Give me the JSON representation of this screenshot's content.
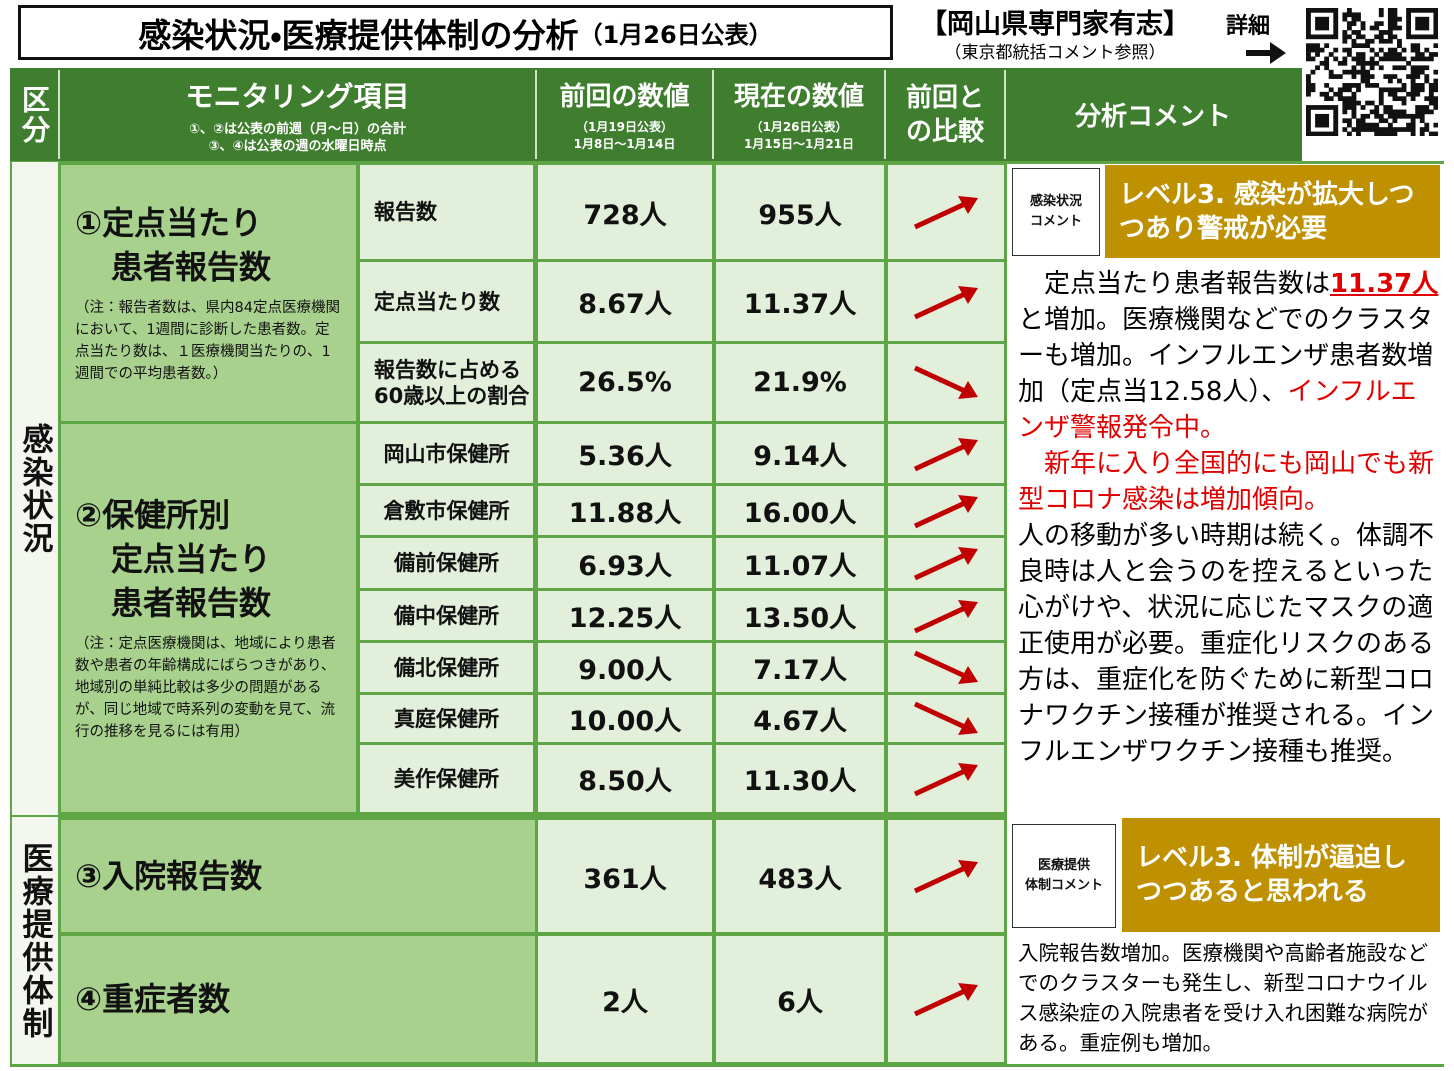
{
  "header": {
    "title": "感染状況・医療提供体制の分析",
    "date": "（1月26日公表）",
    "source": "【岡山県専門家有志】",
    "source_note": "（東京都統括コメント参照）",
    "detail_link": "詳細"
  },
  "table": {
    "columns": {
      "category": "区分",
      "item": "モニタリング項目",
      "item_notes": [
        "①、②は公表の前週（月～日）の合計",
        "③、④は公表の週の水曜日時点"
      ],
      "previous": "前回の数値",
      "previous_date": "（1月19日公表）",
      "previous_period": "1月8日～1月14日",
      "current": "現在の数値",
      "current_date": "（1月26日公表）",
      "current_period": "1月15日～1月21日",
      "comparison": "前回との比較",
      "comment": "分析コメント"
    },
    "sections": [
      {
        "label": "感染状況",
        "groups": [
          {
            "label_lines": [
              "①定点当たり",
              "患者報告数"
            ],
            "note": "（注：報告者数は、県内84定点医療機関において、1週間に診断した患者数。定点当たり数は、１医療機関当たりの、1週間での平均患者数。）",
            "rows": [
              {
                "item": [
                  "報告数"
                ],
                "previous": "728人",
                "current": "955人",
                "trend": "up"
              },
              {
                "item": [
                  "定点当たり数"
                ],
                "previous": "8.67人",
                "current": "11.37人",
                "trend": "up"
              },
              {
                "item": [
                  "報告数に占める",
                  "60歳以上の割合"
                ],
                "previous": "26.5%",
                "current": "21.9%",
                "trend": "down"
              }
            ]
          },
          {
            "label_lines": [
              "②保健所別",
              "定点当たり",
              "患者報告数"
            ],
            "note": "（注：定点医療機関は、地域により患者数や患者の年齢構成にばらつきがあり、地域別の単純比較は多少の問題があるが、同じ地域で時系列の変動を見て、流行の推移を見るには有用）",
            "rows": [
              {
                "item": [
                  "岡山市保健所"
                ],
                "previous": "5.36人",
                "current": "9.14人",
                "trend": "up"
              },
              {
                "item": [
                  "倉敷市保健所"
                ],
                "previous": "11.88人",
                "current": "16.00人",
                "trend": "up"
              },
              {
                "item": [
                  "備前保健所"
                ],
                "previous": "6.93人",
                "current": "11.07人",
                "trend": "up"
              },
              {
                "item": [
                  "備中保健所"
                ],
                "previous": "12.25人",
                "current": "13.50人",
                "trend": "up"
              },
              {
                "item": [
                  "備北保健所"
                ],
                "previous": "9.00人",
                "current": "7.17人",
                "trend": "down"
              },
              {
                "item": [
                  "真庭保健所"
                ],
                "previous": "10.00人",
                "current": "4.67人",
                "trend": "down"
              },
              {
                "item": [
                  "美作保健所"
                ],
                "previous": "8.50人",
                "current": "11.30人",
                "trend": "up"
              }
            ]
          }
        ],
        "comment": {
          "label_lines": [
            "感染状況",
            "コメント"
          ],
          "level": "レベル3. 感染が拡大しつつあり警戒が必要",
          "paragraphs": [
            [
              {
                "text": "定点当たり患者報告数は",
                "color": "#000000"
              },
              {
                "text": "11.37人",
                "color": "#e00000",
                "underline": true
              },
              {
                "text": "と増加。医療機関などでのクラスターも増加。インフルエンザ患者数増加（定点当12.58人）、",
                "color": "#000000"
              },
              {
                "text": "インフルエンザ警報発令中。",
                "color": "#e00000"
              }
            ],
            [
              {
                "text": "新年に入り全国的にも岡山でも新型コロナ感染は増加傾向。",
                "color": "#e00000"
              }
            ],
            [
              {
                "text": "人の移動が多い時期は続く。体調不良時は人と会うのを控えるといった心がけや、状況に応じたマスクの適正使用が必要。重症化リスクのある方は、重症化を防ぐために新型コロナワクチン接種が推奨される。インフルエンザワクチン接種も推奨。",
                "color": "#000000"
              }
            ]
          ]
        }
      },
      {
        "label": "医療提供体制",
        "groups": [
          {
            "label_lines": [
              "③入院報告数"
            ],
            "rows": [
              {
                "previous": "361人",
                "current": "483人",
                "trend": "up"
              }
            ]
          },
          {
            "label_lines": [
              "④重症者数"
            ],
            "rows": [
              {
                "previous": "2人",
                "current": "6人",
                "trend": "up"
              }
            ]
          }
        ],
        "comment": {
          "label_lines": [
            "医療提供",
            "体制コメント"
          ],
          "level": "レベル3. 体制が逼迫しつつあると思われる",
          "paragraphs": [
            [
              {
                "text": "入院報告数増加。医療機関や高齢者施設などでのクラスターも発生し、新型コロナウイルス感染症の入院患者を受け入れ困難な病院がある。重症例も増加。",
                "color": "#000000"
              }
            ]
          ]
        }
      }
    ]
  }
}
